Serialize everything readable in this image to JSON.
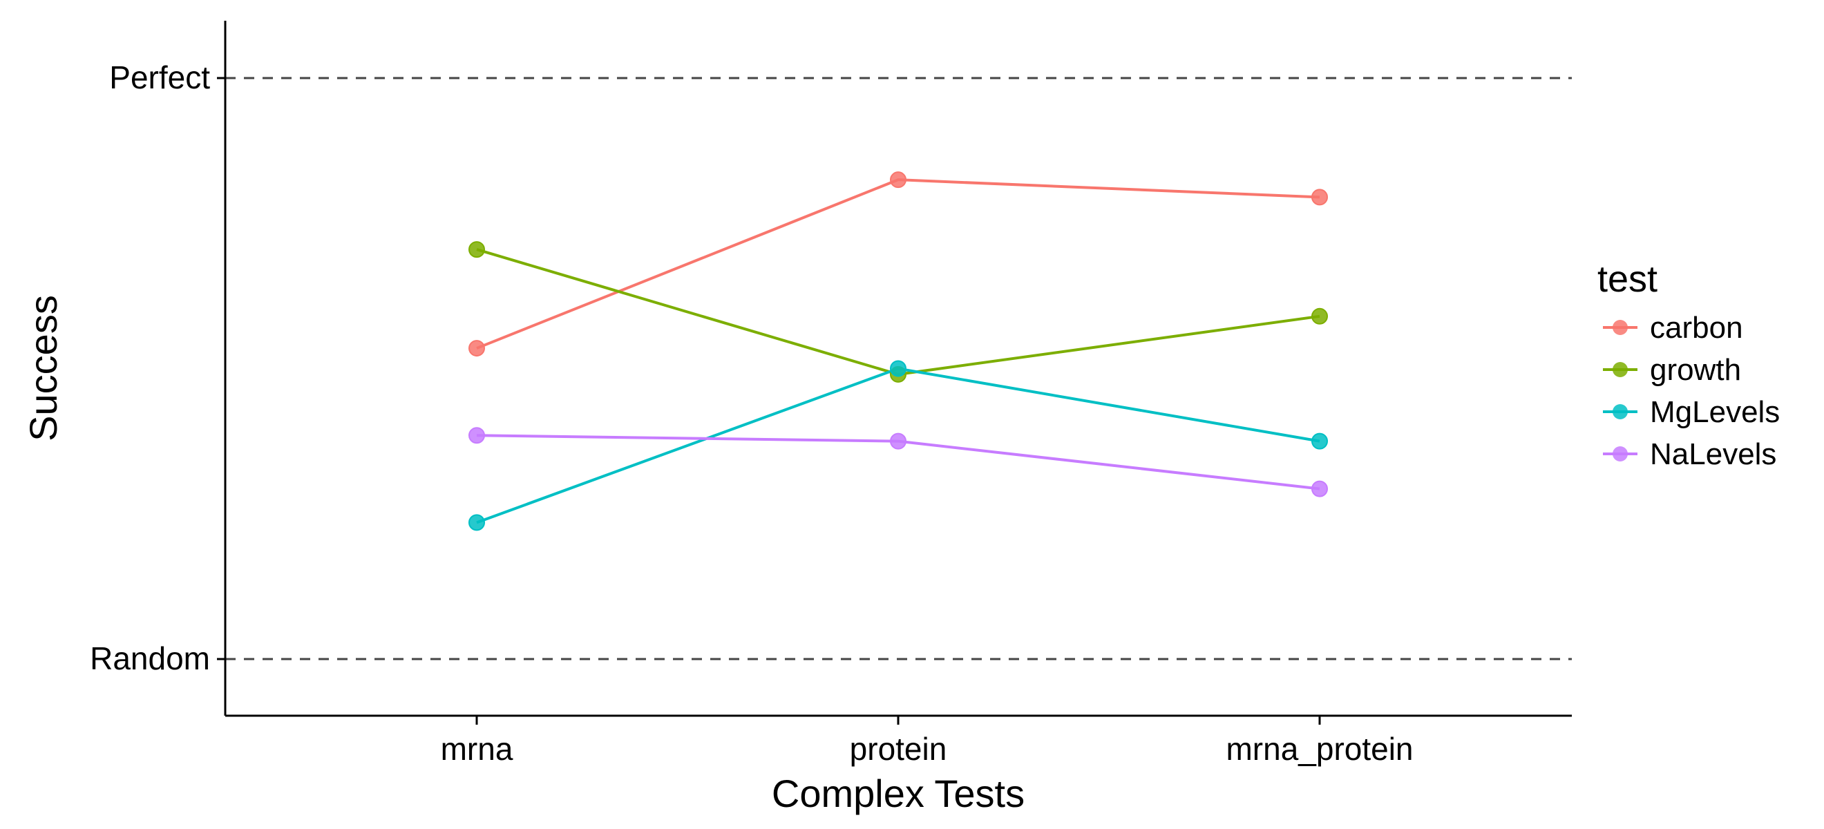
{
  "chart_data": {
    "type": "line",
    "xlabel": "Complex Tests",
    "ylabel": "Success",
    "categories": [
      "mrna",
      "protein",
      "mrna_protein"
    ],
    "y_tick_labels": [
      "Random",
      "Perfect"
    ],
    "ylim": [
      0,
      1
    ],
    "reference_lines": [
      {
        "label": "Perfect",
        "y": 1,
        "style": "dashed"
      },
      {
        "label": "Random",
        "y": 0,
        "style": "dashed"
      }
    ],
    "legend": {
      "title": "test",
      "placement": "right"
    },
    "grid": false,
    "series": [
      {
        "name": "carbon",
        "color": "#F8766D",
        "values": [
          0.535,
          0.825,
          0.795
        ]
      },
      {
        "name": "growth",
        "color": "#7CAE00",
        "values": [
          0.705,
          0.49,
          0.59
        ]
      },
      {
        "name": "MgLevels",
        "color": "#00BFC4",
        "values": [
          0.235,
          0.5,
          0.375
        ]
      },
      {
        "name": "NaLevels",
        "color": "#C77CFF",
        "values": [
          0.385,
          0.375,
          0.293
        ]
      }
    ]
  }
}
